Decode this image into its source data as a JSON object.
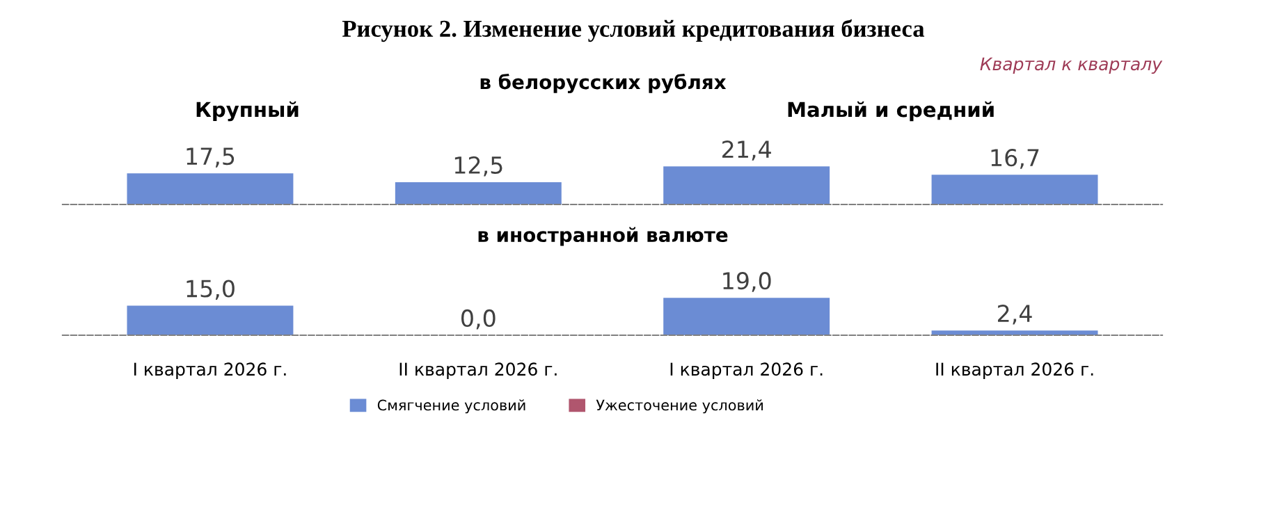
{
  "chart_data": [
    {
      "type": "bar",
      "title": "Рисунок 2. Изменение условий кредитования бизнеса",
      "annotations": [
        "Квартал к кварталу",
        "в белорусских рублях",
        "Крупный",
        "Малый и средний"
      ],
      "categories": [
        null,
        null,
        null,
        null
      ],
      "series": [
        {
          "color": "#6b8cd4",
          "values": [
            17.5,
            12.5,
            21.4,
            16.7
          ],
          "value_labels": [
            "17,5",
            "12,5",
            "21,4",
            "16,7"
          ]
        }
      ]
    },
    {
      "type": "bar",
      "annotations": [
        "в иностранной валюте"
      ],
      "categories": [
        "I квартал 2026 г.",
        "II квартал 2026 г.",
        "I квартал 2026 г.",
        "II квартал 2026 г."
      ],
      "series": [
        {
          "name": "Смягчение условий",
          "color": "#6b8cd4",
          "values": [
            15.0,
            0.0,
            19.0,
            2.4
          ],
          "value_labels": [
            "15,0",
            "0,0",
            "19,0",
            "2,4"
          ]
        },
        {
          "name": "Ужесточение условий",
          "color": "#b0566e",
          "values": [
            null,
            null,
            null,
            null
          ]
        }
      ],
      "legend": "bottom"
    }
  ]
}
